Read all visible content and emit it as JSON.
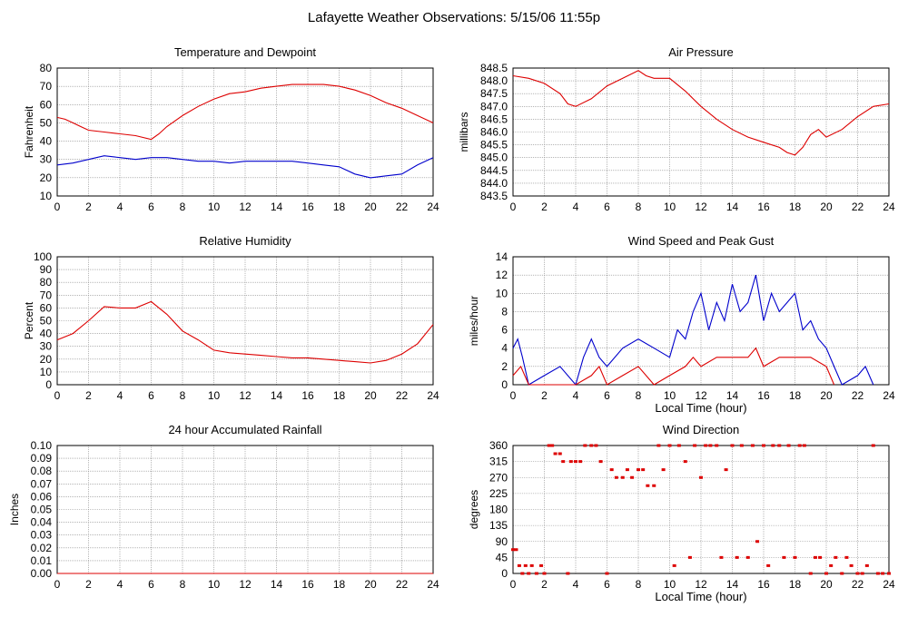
{
  "page_title": "Lafayette Weather Observations: 5/15/06 11:55p",
  "colors": {
    "red": "#dd0000",
    "blue": "#0000cc",
    "grid": "#888888",
    "axis": "#000000"
  },
  "chart_data": [
    {
      "id": "temp",
      "type": "line",
      "title": "Temperature and Dewpoint",
      "xlabel": "",
      "ylabel": "Fahrenheit",
      "xlim": [
        0,
        24
      ],
      "ylim": [
        10,
        80
      ],
      "xticks": [
        0,
        2,
        4,
        6,
        8,
        10,
        12,
        14,
        16,
        18,
        20,
        22,
        24
      ],
      "yticks": [
        10,
        20,
        30,
        40,
        50,
        60,
        70,
        80
      ],
      "grid": true,
      "series": [
        {
          "color": "#dd0000",
          "x": [
            0,
            0.5,
            1,
            1.5,
            2,
            3,
            4,
            5,
            6,
            6.5,
            7,
            8,
            9,
            10,
            11,
            12,
            13,
            14,
            15,
            16,
            17,
            18,
            19,
            20,
            21,
            22,
            23,
            24
          ],
          "y": [
            53,
            52,
            50,
            48,
            46,
            45,
            44,
            43,
            41,
            44,
            48,
            54,
            59,
            63,
            66,
            67,
            69,
            70,
            71,
            71,
            71,
            70,
            68,
            65,
            61,
            58,
            54,
            50
          ]
        },
        {
          "color": "#0000cc",
          "x": [
            0,
            1,
            2,
            3,
            4,
            5,
            6,
            7,
            8,
            9,
            10,
            11,
            12,
            13,
            14,
            15,
            16,
            17,
            18,
            19,
            20,
            21,
            22,
            23,
            24
          ],
          "y": [
            27,
            28,
            30,
            32,
            31,
            30,
            31,
            31,
            30,
            29,
            29,
            28,
            29,
            29,
            29,
            29,
            28,
            27,
            26,
            22,
            20,
            21,
            22,
            27,
            31
          ]
        }
      ]
    },
    {
      "id": "pressure",
      "type": "line",
      "title": "Air Pressure",
      "xlabel": "",
      "ylabel": "millibars",
      "xlim": [
        0,
        24
      ],
      "ylim": [
        843.5,
        848.5
      ],
      "xticks": [
        0,
        2,
        4,
        6,
        8,
        10,
        12,
        14,
        16,
        18,
        20,
        22,
        24
      ],
      "yticks": [
        "843.5",
        "844.0",
        "844.5",
        "845.0",
        "845.5",
        "846.0",
        "846.5",
        "847.0",
        "847.5",
        "848.0",
        "848.5"
      ],
      "grid": true,
      "series": [
        {
          "color": "#dd0000",
          "x": [
            0,
            1,
            2,
            3,
            3.5,
            4,
            5,
            6,
            7,
            8,
            8.5,
            9,
            10,
            11,
            12,
            13,
            14,
            15,
            16,
            17,
            17.5,
            18,
            18.5,
            19,
            19.5,
            20,
            21,
            22,
            23,
            24
          ],
          "y": [
            848.2,
            848.1,
            847.9,
            847.5,
            847.1,
            847.0,
            847.3,
            847.8,
            848.1,
            848.4,
            848.2,
            848.1,
            848.1,
            847.6,
            847.0,
            846.5,
            846.1,
            845.8,
            845.6,
            845.4,
            845.2,
            845.1,
            845.4,
            845.9,
            846.1,
            845.8,
            846.1,
            846.6,
            847.0,
            847.1
          ]
        }
      ]
    },
    {
      "id": "humidity",
      "type": "line",
      "title": "Relative Humidity",
      "xlabel": "",
      "ylabel": "Percent",
      "xlim": [
        0,
        24
      ],
      "ylim": [
        0,
        100
      ],
      "xticks": [
        0,
        2,
        4,
        6,
        8,
        10,
        12,
        14,
        16,
        18,
        20,
        22,
        24
      ],
      "yticks": [
        0,
        10,
        20,
        30,
        40,
        50,
        60,
        70,
        80,
        90,
        100
      ],
      "grid": true,
      "series": [
        {
          "color": "#dd0000",
          "x": [
            0,
            1,
            2,
            3,
            4,
            5,
            6,
            7,
            8,
            9,
            10,
            11,
            12,
            13,
            14,
            15,
            16,
            17,
            18,
            19,
            20,
            21,
            22,
            23,
            24
          ],
          "y": [
            35,
            40,
            50,
            61,
            60,
            60,
            65,
            55,
            42,
            35,
            27,
            25,
            24,
            23,
            22,
            21,
            21,
            20,
            19,
            18,
            17,
            19,
            24,
            32,
            47
          ]
        }
      ]
    },
    {
      "id": "wind",
      "type": "line",
      "title": "Wind Speed and Peak Gust",
      "xlabel": "Local Time (hour)",
      "ylabel": "miles/hour",
      "xlim": [
        0,
        24
      ],
      "ylim": [
        0,
        14
      ],
      "xticks": [
        0,
        2,
        4,
        6,
        8,
        10,
        12,
        14,
        16,
        18,
        20,
        22,
        24
      ],
      "yticks": [
        0,
        2,
        4,
        6,
        8,
        10,
        12,
        14
      ],
      "grid": true,
      "series": [
        {
          "color": "#0000cc",
          "x": [
            0,
            0.3,
            0.6,
            1,
            2,
            3,
            4,
            4.5,
            5,
            5.5,
            6,
            7,
            8,
            9,
            10,
            10.5,
            11,
            11.5,
            12,
            12.5,
            13,
            13.5,
            14,
            14.5,
            15,
            15.5,
            16,
            16.5,
            17,
            17.5,
            18,
            18.5,
            19,
            19.5,
            20,
            20.5,
            21,
            22,
            22.5,
            23
          ],
          "y": [
            4,
            5,
            3,
            0,
            1,
            2,
            0,
            3,
            5,
            3,
            2,
            4,
            5,
            4,
            3,
            6,
            5,
            8,
            10,
            6,
            9,
            7,
            11,
            8,
            9,
            12,
            7,
            10,
            8,
            9,
            10,
            6,
            7,
            5,
            4,
            2,
            0,
            1,
            2,
            0
          ]
        },
        {
          "color": "#dd0000",
          "x": [
            0,
            0.5,
            1,
            2,
            3,
            4,
            5,
            5.5,
            6,
            7,
            8,
            9,
            10,
            11,
            11.5,
            12,
            13,
            14,
            15,
            15.5,
            16,
            17,
            18,
            19,
            20,
            20.5
          ],
          "y": [
            1,
            2,
            0,
            0,
            0,
            0,
            1,
            2,
            0,
            1,
            2,
            0,
            1,
            2,
            3,
            2,
            3,
            3,
            3,
            4,
            2,
            3,
            3,
            3,
            2,
            0
          ]
        }
      ]
    },
    {
      "id": "rain",
      "type": "line",
      "title": "24 hour Accumulated Rainfall",
      "xlabel": "",
      "ylabel": "Inches",
      "xlim": [
        0,
        24
      ],
      "ylim": [
        0,
        0.1
      ],
      "xticks": [
        0,
        2,
        4,
        6,
        8,
        10,
        12,
        14,
        16,
        18,
        20,
        22,
        24
      ],
      "yticks": [
        "0.00",
        "0.01",
        "0.02",
        "0.03",
        "0.04",
        "0.05",
        "0.06",
        "0.07",
        "0.08",
        "0.09",
        "0.10"
      ],
      "grid": true,
      "series": [
        {
          "color": "#dd0000",
          "x": [
            0,
            24
          ],
          "y": [
            0,
            0
          ]
        }
      ]
    },
    {
      "id": "direction",
      "type": "scatter",
      "title": "Wind Direction",
      "xlabel": "Local Time (hour)",
      "ylabel": "degrees",
      "xlim": [
        0,
        24
      ],
      "ylim": [
        0,
        360
      ],
      "xticks": [
        0,
        2,
        4,
        6,
        8,
        10,
        12,
        14,
        16,
        18,
        20,
        22,
        24
      ],
      "yticks": [
        0,
        45,
        90,
        135,
        180,
        225,
        270,
        315,
        360
      ],
      "grid": true,
      "series": [
        {
          "color": "#dd0000",
          "x": [
            0,
            0.2,
            0.4,
            0.6,
            0.8,
            1,
            1.2,
            1.5,
            1.8,
            2,
            2.3,
            2.5,
            2.7,
            3,
            3.2,
            3.5,
            3.7,
            4,
            4.3,
            4.6,
            5,
            5.3,
            5.6,
            6,
            6.3,
            6.6,
            7,
            7.3,
            7.6,
            8,
            8.3,
            8.6,
            9,
            9.3,
            9.6,
            10,
            10.3,
            10.6,
            11,
            11.3,
            11.6,
            12,
            12.3,
            12.6,
            13,
            13.3,
            13.6,
            14,
            14.3,
            14.6,
            15,
            15.3,
            15.6,
            16,
            16.3,
            16.6,
            17,
            17.3,
            17.6,
            18,
            18.3,
            18.6,
            19,
            19.3,
            19.6,
            20,
            20.3,
            20.6,
            21,
            21.3,
            21.6,
            22,
            22.3,
            22.6,
            23,
            23.3,
            23.6,
            24
          ],
          "y": [
            67,
            67,
            22,
            0,
            22,
            0,
            22,
            0,
            22,
            0,
            360,
            360,
            337,
            337,
            315,
            0,
            315,
            315,
            315,
            360,
            360,
            360,
            315,
            0,
            292,
            270,
            270,
            292,
            270,
            292,
            292,
            247,
            247,
            360,
            292,
            360,
            22,
            360,
            315,
            45,
            360,
            270,
            360,
            360,
            360,
            45,
            292,
            360,
            45,
            360,
            45,
            360,
            90,
            360,
            22,
            360,
            360,
            45,
            360,
            45,
            360,
            360,
            0,
            45,
            45,
            0,
            22,
            45,
            0,
            45,
            22,
            0,
            0,
            22,
            360,
            0,
            0,
            0
          ]
        }
      ]
    }
  ]
}
